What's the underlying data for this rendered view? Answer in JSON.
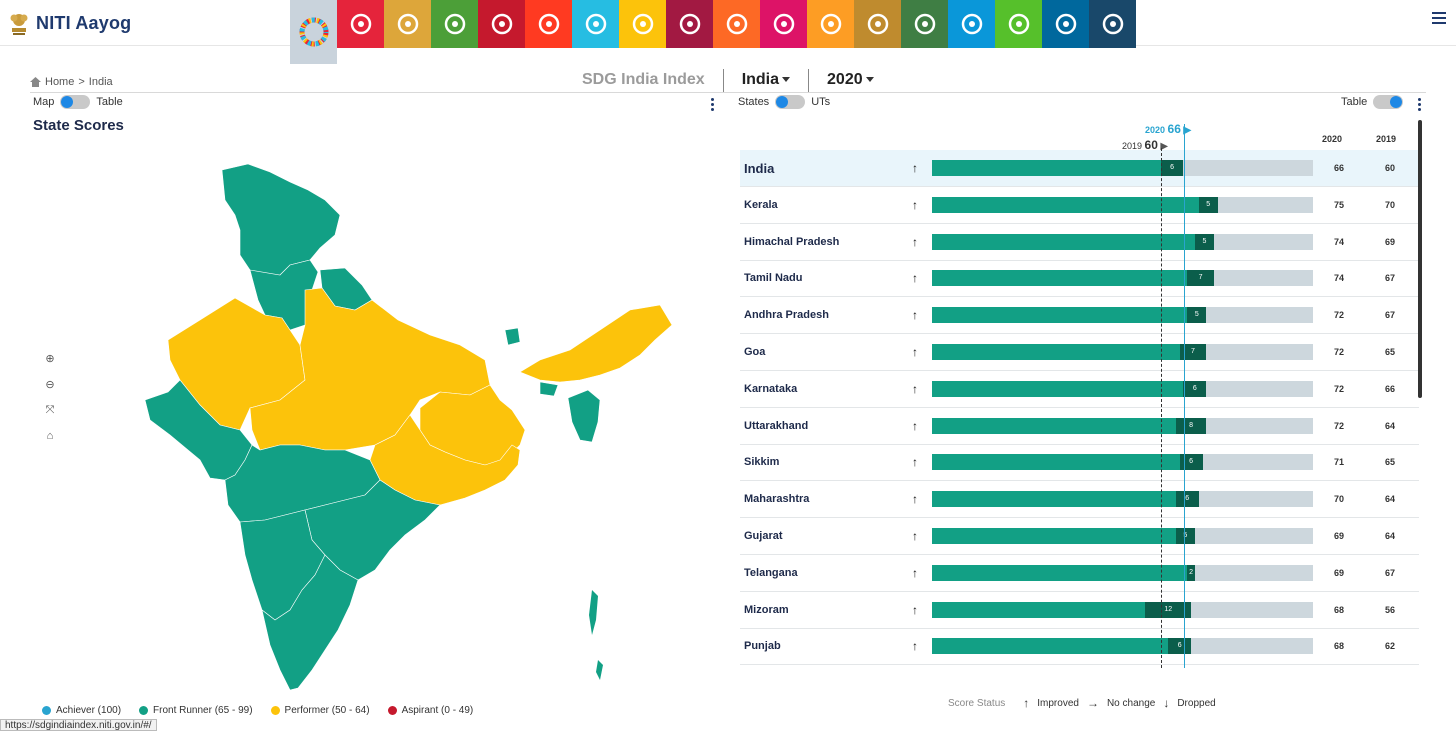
{
  "brand": {
    "name": "NITI Aayog"
  },
  "sdg_icons": [
    {
      "name": "sdg-all-icon",
      "color": "#c9d3dc",
      "active": true
    },
    {
      "name": "sdg1-no-poverty-icon",
      "color": "#e5243b"
    },
    {
      "name": "sdg2-zero-hunger-icon",
      "color": "#dda63a"
    },
    {
      "name": "sdg3-good-health-icon",
      "color": "#4c9f38"
    },
    {
      "name": "sdg4-quality-education-icon",
      "color": "#c5192d"
    },
    {
      "name": "sdg5-gender-equality-icon",
      "color": "#ff3a21"
    },
    {
      "name": "sdg6-clean-water-icon",
      "color": "#26bde2"
    },
    {
      "name": "sdg7-clean-energy-icon",
      "color": "#fcc30b"
    },
    {
      "name": "sdg8-decent-work-icon",
      "color": "#a21942"
    },
    {
      "name": "sdg9-industry-icon",
      "color": "#fd6925"
    },
    {
      "name": "sdg10-reduced-inequalities-icon",
      "color": "#dd1367"
    },
    {
      "name": "sdg11-sustainable-cities-icon",
      "color": "#fd9d24"
    },
    {
      "name": "sdg12-responsible-consumption-icon",
      "color": "#bf8b2e"
    },
    {
      "name": "sdg13-climate-action-icon",
      "color": "#3f7e44"
    },
    {
      "name": "sdg14-life-below-water-icon",
      "color": "#0a97d9"
    },
    {
      "name": "sdg15-life-on-land-icon",
      "color": "#56c02b"
    },
    {
      "name": "sdg16-peace-justice-icon",
      "color": "#00689d"
    },
    {
      "name": "sdg17-partnerships-icon",
      "color": "#19486a"
    }
  ],
  "breadcrumb": {
    "home": "Home",
    "separator": ">",
    "current": "India"
  },
  "header": {
    "title": "SDG India Index",
    "region": "India",
    "year": "2020"
  },
  "left_panel": {
    "toggle_left": "Map",
    "toggle_right": "Table",
    "title": "State Scores"
  },
  "legend": [
    {
      "label": "Achiever (100)",
      "color": "#29a4d0"
    },
    {
      "label": "Front Runner (65 - 99)",
      "color": "#12a085"
    },
    {
      "label": "Performer (50 - 64)",
      "color": "#fcc30b"
    },
    {
      "label": "Aspirant (0 - 49)",
      "color": "#c5192d"
    }
  ],
  "url_tooltip": "https://sdgindiaindex.niti.gov.in/#/",
  "right_panel": {
    "toggle_left": "States",
    "toggle_right": "UTs",
    "table_label": "Table",
    "marker_2020_label": "2020",
    "marker_2020_value": "66",
    "marker_2019_label": "2019",
    "marker_2019_value": "60",
    "col_2020": "2020",
    "col_2019": "2019"
  },
  "rows": [
    {
      "name": "India",
      "arrow": "↑",
      "v2020": "66",
      "v2019": "60",
      "delta": "6"
    },
    {
      "name": "Kerala",
      "arrow": "↑",
      "v2020": "75",
      "v2019": "70",
      "delta": "5"
    },
    {
      "name": "Himachal Pradesh",
      "arrow": "↑",
      "v2020": "74",
      "v2019": "69",
      "delta": "5"
    },
    {
      "name": "Tamil Nadu",
      "arrow": "↑",
      "v2020": "74",
      "v2019": "67",
      "delta": "7"
    },
    {
      "name": "Andhra Pradesh",
      "arrow": "↑",
      "v2020": "72",
      "v2019": "67",
      "delta": "5"
    },
    {
      "name": "Goa",
      "arrow": "↑",
      "v2020": "72",
      "v2019": "65",
      "delta": "7"
    },
    {
      "name": "Karnataka",
      "arrow": "↑",
      "v2020": "72",
      "v2019": "66",
      "delta": "6"
    },
    {
      "name": "Uttarakhand",
      "arrow": "↑",
      "v2020": "72",
      "v2019": "64",
      "delta": "8"
    },
    {
      "name": "Sikkim",
      "arrow": "↑",
      "v2020": "71",
      "v2019": "65",
      "delta": "6"
    },
    {
      "name": "Maharashtra",
      "arrow": "↑",
      "v2020": "70",
      "v2019": "64",
      "delta": "6"
    },
    {
      "name": "Gujarat",
      "arrow": "↑",
      "v2020": "69",
      "v2019": "64",
      "delta": "5"
    },
    {
      "name": "Telangana",
      "arrow": "↑",
      "v2020": "69",
      "v2019": "67",
      "delta": "2"
    },
    {
      "name": "Mizoram",
      "arrow": "↑",
      "v2020": "68",
      "v2019": "56",
      "delta": "12"
    },
    {
      "name": "Punjab",
      "arrow": "↑",
      "v2020": "68",
      "v2019": "62",
      "delta": "6"
    }
  ],
  "score_status": {
    "label": "Score Status",
    "improved": "Improved",
    "no_change": "No change",
    "dropped": "Dropped"
  },
  "chart_data": {
    "type": "bar",
    "categories": [
      "India",
      "Kerala",
      "Himachal Pradesh",
      "Tamil Nadu",
      "Andhra Pradesh",
      "Goa",
      "Karnataka",
      "Uttarakhand",
      "Sikkim",
      "Maharashtra",
      "Gujarat",
      "Telangana",
      "Mizoram",
      "Punjab"
    ],
    "series": [
      {
        "name": "2020",
        "values": [
          66,
          75,
          74,
          74,
          72,
          72,
          72,
          72,
          71,
          70,
          69,
          69,
          68,
          68
        ]
      },
      {
        "name": "2019",
        "values": [
          60,
          70,
          69,
          67,
          67,
          65,
          66,
          64,
          65,
          64,
          64,
          67,
          56,
          62
        ]
      }
    ],
    "ylim": [
      0,
      100
    ],
    "reference_lines": [
      {
        "label": "2020",
        "value": 66
      },
      {
        "label": "2019",
        "value": 60
      }
    ]
  }
}
